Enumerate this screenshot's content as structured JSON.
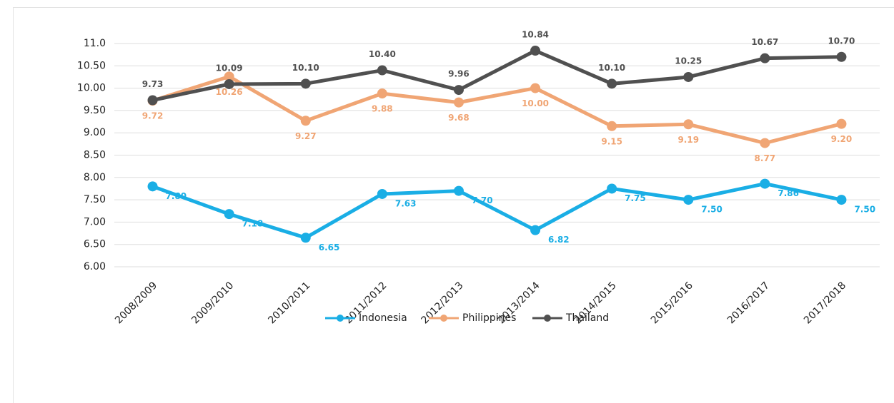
{
  "chart_data": {
    "type": "line",
    "categories": [
      "2008/2009",
      "2009/2010",
      "2010/2011",
      "2011/2012",
      "2012/2013",
      "2013/2014",
      "2014/2015",
      "2015/2016",
      "2016/2017",
      "2017/2018"
    ],
    "series": [
      {
        "name": "Indonesia",
        "color": "#1aaee5",
        "values": [
          7.8,
          7.18,
          6.65,
          7.63,
          7.7,
          6.82,
          7.75,
          7.5,
          7.86,
          7.5
        ],
        "value_labels": [
          "7.80",
          "7.18",
          "6.65",
          "7.63",
          "7.70",
          "6.82",
          "7.75",
          "7.50",
          "7.86",
          "7.50"
        ]
      },
      {
        "name": "Philippines",
        "color": "#f0a574",
        "values": [
          9.72,
          10.26,
          9.27,
          9.88,
          9.68,
          10.0,
          9.15,
          9.19,
          8.77,
          9.2
        ],
        "value_labels": [
          "9.72",
          "10.26",
          "9.27",
          "9.88",
          "9.68",
          "10.00",
          "9.15",
          "9.19",
          "8.77",
          "9.20"
        ]
      },
      {
        "name": "Thailand",
        "color": "#505050",
        "values": [
          9.73,
          10.09,
          10.1,
          10.4,
          9.96,
          10.84,
          10.1,
          10.25,
          10.67,
          10.7
        ],
        "value_labels": [
          "9.73",
          "10.09",
          "10.10",
          "10.40",
          "9.96",
          "10.84",
          "10.10",
          "10.25",
          "10.67",
          "10.70"
        ]
      }
    ],
    "ylim": [
      6,
      11
    ],
    "yticks": [
      {
        "value": 6,
        "label": "6.00"
      },
      {
        "value": 6.5,
        "label": "6.50"
      },
      {
        "value": 7,
        "label": "7.00"
      },
      {
        "value": 7.5,
        "label": "7.50"
      },
      {
        "value": 8,
        "label": "8.00"
      },
      {
        "value": 8.5,
        "label": "8.50"
      },
      {
        "value": 9,
        "label": "9.00"
      },
      {
        "value": 9.5,
        "label": "9.50"
      },
      {
        "value": 10,
        "label": "10.00"
      },
      {
        "value": 10.5,
        "label": "10.50"
      },
      {
        "value": 11,
        "label": "11.0"
      }
    ],
    "grid": true,
    "legend": "bottom"
  }
}
